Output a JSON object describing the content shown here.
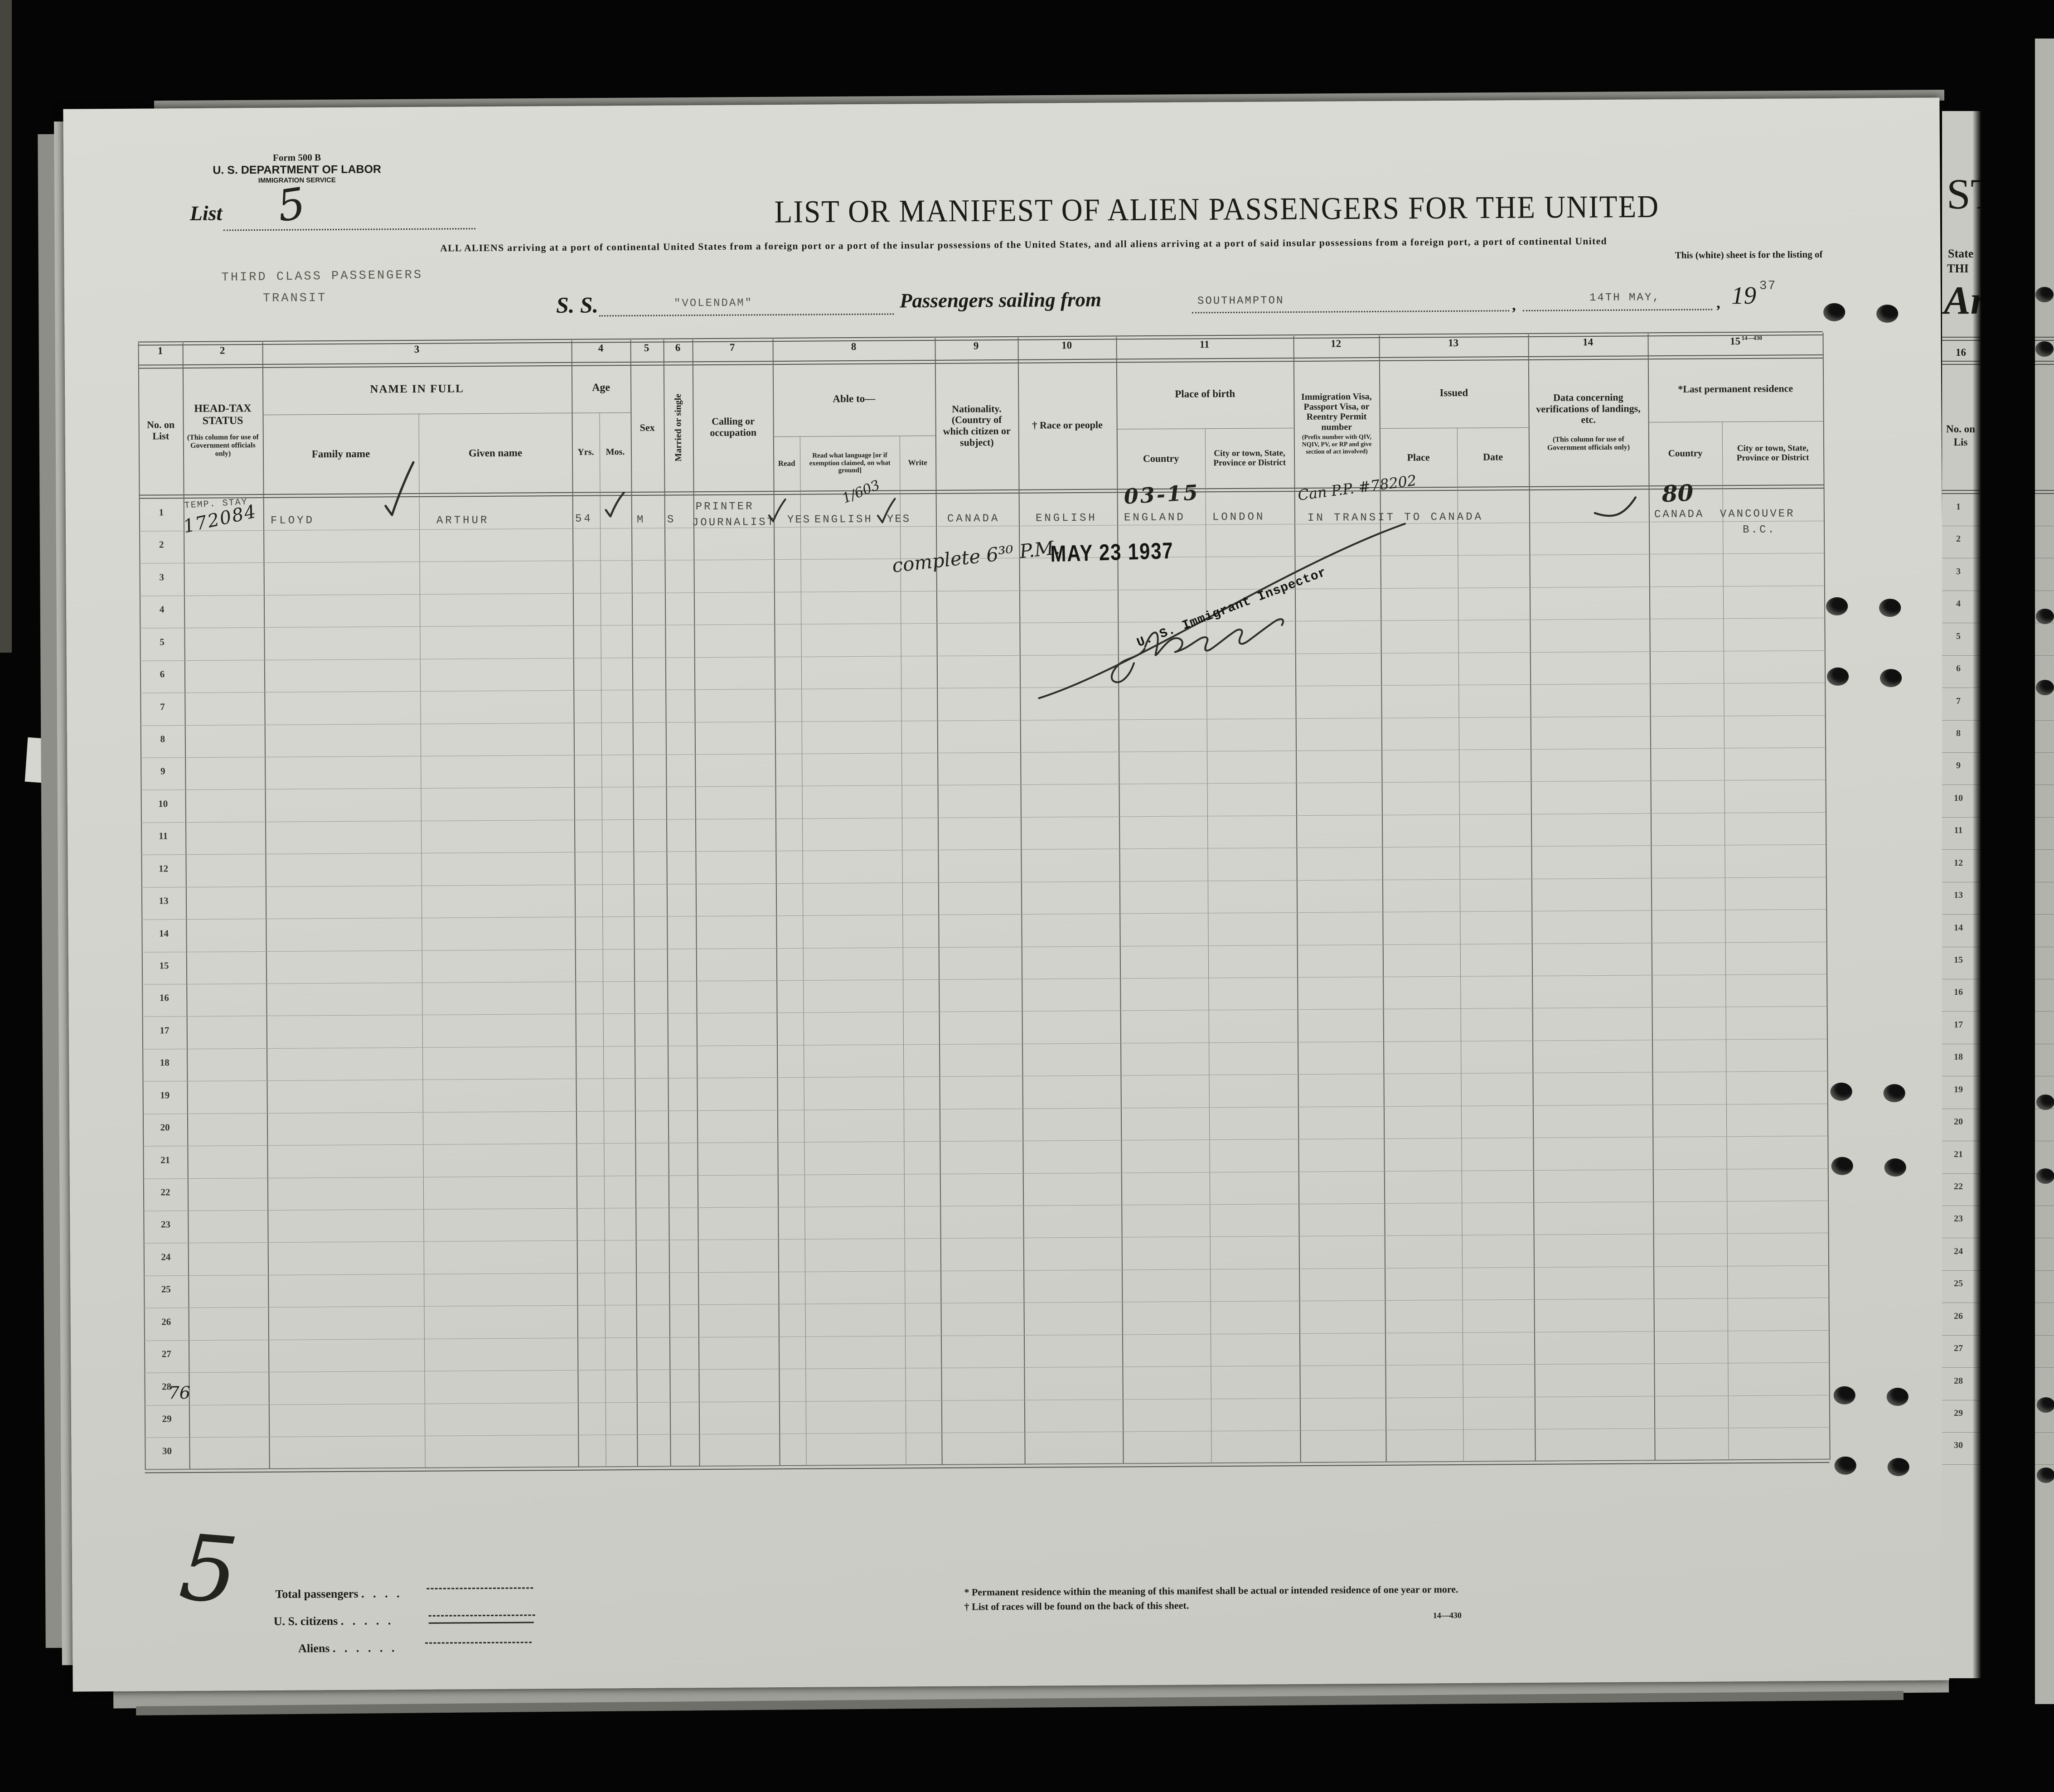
{
  "form": {
    "form_number": "Form 500 B",
    "department": "U. S. DEPARTMENT OF LABOR",
    "service": "IMMIGRATION SERVICE",
    "list_label": "List",
    "list_number": "5",
    "title": "LIST OR MANIFEST OF ALIEN PASSENGERS FOR THE UNITED",
    "subtitle": "ALL ALIENS arriving at a port of continental United States from a foreign port or a port of the insular possessions of the United States, and all aliens arriving at a port of said insular possessions from a foreign port, a port of continental United",
    "subtitle_right": "This (white) sheet is for the listing of",
    "form_code_top": "14—430",
    "class_stamp": "THIRD CLASS PASSENGERS",
    "transit_stamp": "TRANSIT",
    "ss_label": "S. S.",
    "ship_name": "\"VOLENDAM\"",
    "sailing_label": "Passengers sailing from",
    "port": "SOUTHAMPTON",
    "sail_date": "14TH MAY,",
    "year_printed": "19",
    "year_typed": "37",
    "comma": ","
  },
  "table": {
    "column_numbers": [
      "1",
      "2",
      "3",
      "4",
      "5",
      "6",
      "7",
      "8",
      "9",
      "10",
      "11",
      "12",
      "13",
      "14",
      "15"
    ],
    "row_numbers": [
      "1",
      "2",
      "3",
      "4",
      "5",
      "6",
      "7",
      "8",
      "9",
      "10",
      "11",
      "12",
      "13",
      "14",
      "15",
      "16",
      "17",
      "18",
      "19",
      "20",
      "21",
      "22",
      "23",
      "24",
      "25",
      "26",
      "27",
      "28",
      "29",
      "30"
    ],
    "headers": {
      "no_on_list": "No. on List",
      "headtax_title": "HEAD-TAX STATUS",
      "headtax_note": "(This column for use of Government officials only)",
      "name_in_full": "NAME IN FULL",
      "family_name": "Family name",
      "given_name": "Given name",
      "age": "Age",
      "yrs": "Yrs.",
      "mos": "Mos.",
      "sex": "Sex",
      "married_single": "Married or single",
      "calling": "Calling or occupation",
      "able_to": "Able to—",
      "read": "Read",
      "read_language": "Read what language [or if exemption claimed, on what ground]",
      "write": "Write",
      "nationality": "Nationality. (Country of which citizen or subject)",
      "race": "† Race or people",
      "place_of_birth": "Place of birth",
      "birth_country": "Country",
      "birth_city": "City or town, State, Province or District",
      "visa_title": "Immigration Visa, Passport Visa, or Reentry Permit number",
      "visa_note": "(Prefix number with QIV, NQIV, PV, or RP and give section of act involved)",
      "issued": "Issued",
      "issued_place": "Place",
      "issued_date": "Date",
      "verification": "Data concerning verifications of landings, etc.",
      "verification_note": "(This column for use of Government officials only)",
      "last_residence": "*Last permanent residence",
      "residence_country": "Country",
      "residence_city": "City or town, State, Province or District"
    }
  },
  "passenger": {
    "headtax_stamp": "TEMP. STAY",
    "headtax_hand": "172084",
    "family_name": "FLOYD",
    "given_name": "ARTHUR",
    "age_yrs": "54",
    "sex": "M",
    "marital": "S",
    "calling_1": "PRINTER",
    "calling_2": "JOURNALIST",
    "read": "YES",
    "read_language": "ENGLISH",
    "language_hand": "1/603",
    "write": "YES",
    "nationality": "CANADA",
    "race": "ENGLISH",
    "birth_hand": "03-15",
    "birth_country": "ENGLAND",
    "birth_city": "LONDON",
    "visa_hand": "Can P.P. #78202",
    "visa_note": "IN TRANSIT TO CANADA",
    "residence_hand": "80",
    "residence_country": "CANADA",
    "residence_city": "VANCOUVER",
    "residence_city_2": "B.C."
  },
  "inspection": {
    "complete_note": "complete 6³⁰ P.M.",
    "date_stamp": "MAY 23 1937",
    "inspector_title": "U. S. Immigrant Inspector"
  },
  "marks": {
    "page_number_hand": "76",
    "list_total_hand": "5"
  },
  "totals": {
    "rows": [
      {
        "label": "Total passengers",
        "dots": " .   .   .   . "
      },
      {
        "label": "U. S. citizens",
        "dots": " .   .   .   .   . "
      },
      {
        "label": "Aliens",
        "dots": " .   .   .   .   .   . "
      }
    ]
  },
  "footnotes": {
    "note1": "* Permanent residence within the meaning of this manifest shall be actual or intended residence of one year or more.",
    "note2": "† List of races will be found on the back of this sheet.",
    "form_code": "14—430"
  },
  "next_sheet": {
    "big_caps": "ST",
    "line_state": "State",
    "line_third": "THI",
    "big_italic": "Ar",
    "column_number": "16",
    "no_on_list": "No. on Lis"
  }
}
